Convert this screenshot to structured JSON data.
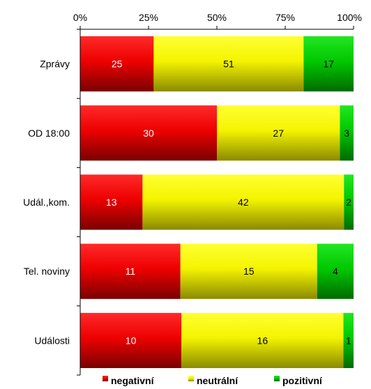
{
  "chart_data": {
    "type": "bar",
    "orientation": "horizontal",
    "stacked": true,
    "normalized_percent": true,
    "categories": [
      "Zprávy",
      "OD 18:00",
      "Udál.,kom.",
      "Tel. noviny",
      "Události"
    ],
    "series": [
      {
        "name": "negativní",
        "values": [
          25,
          30,
          13,
          11,
          10
        ],
        "color": "#ff0000",
        "label_color": "#ffffff"
      },
      {
        "name": "neutrální",
        "values": [
          51,
          27,
          42,
          15,
          16
        ],
        "color": "#ffff00",
        "label_color": "#000000"
      },
      {
        "name": "pozitivní",
        "values": [
          17,
          3,
          2,
          4,
          1
        ],
        "color": "#00cc00",
        "label_color": "#000000"
      }
    ],
    "x_ticks": [
      "0%",
      "25%",
      "50%",
      "75%",
      "100%"
    ],
    "xlim": [
      0,
      100
    ],
    "x_axis_position": "top",
    "legend_position": "bottom",
    "grid": false
  }
}
